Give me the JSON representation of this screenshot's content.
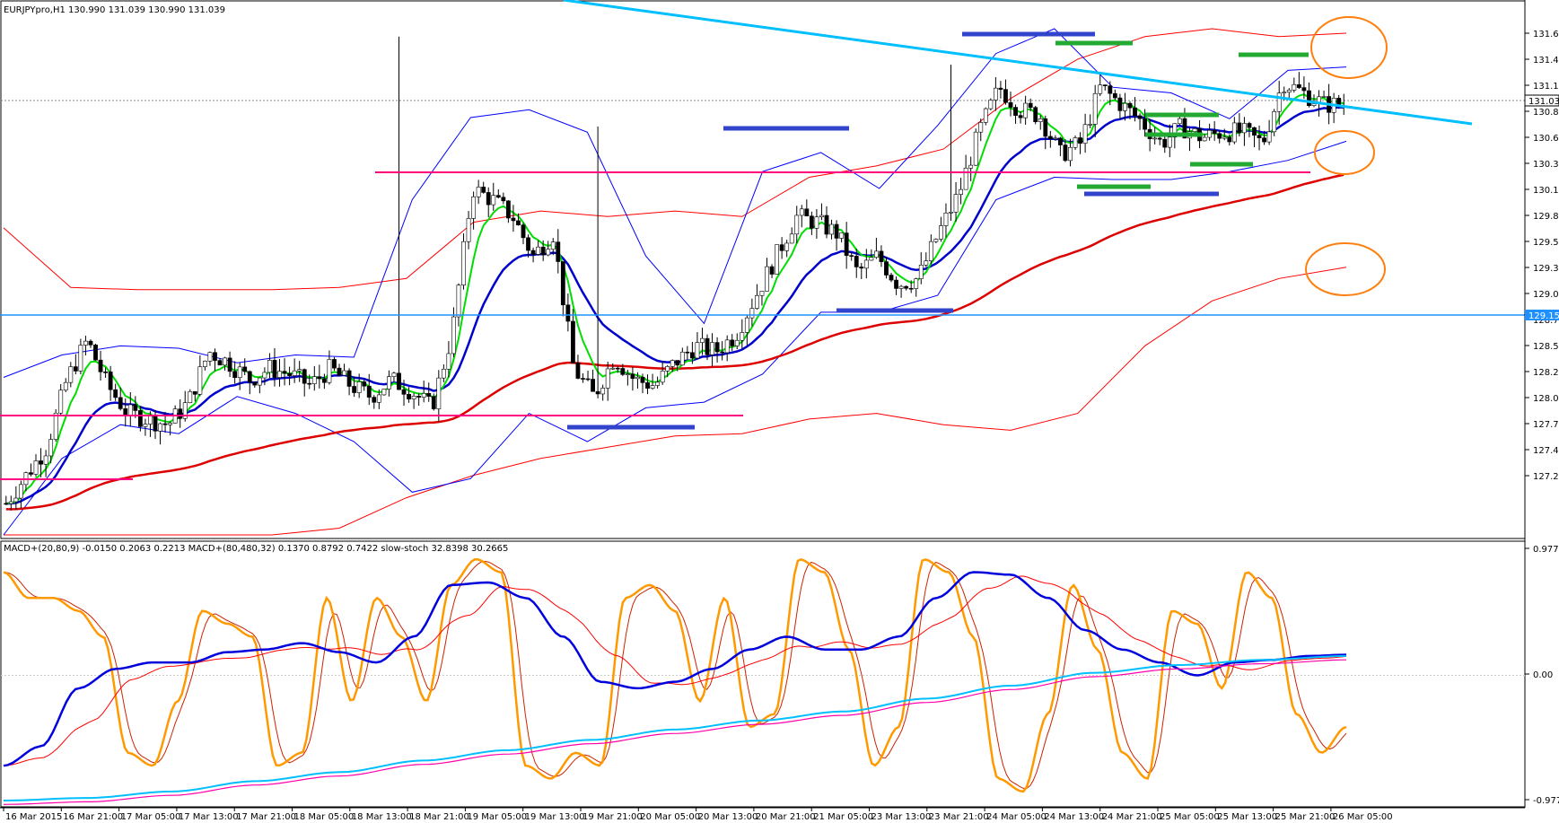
{
  "window": {
    "title_text": "EURJPYpro,H1  130.990 131.039 130.990 131.039",
    "indicator_text": "MACD+(20,80,9) -0.0150 0.2063 0.2213  MACD+(80,480,32) 0.1370 0.8792 0.7422  slow-stoch 32.8398 30.2665"
  },
  "colors": {
    "background": "#ffffff",
    "bull_candle": "#ffffff",
    "bear_candle": "#000000",
    "ema_fast": "#00dd00",
    "ema_mid": "#0000cc",
    "ema_slow": "#dd0000",
    "bollinger_blue": "#0000ff",
    "bollinger_red": "#ff0000",
    "trendline": "#00bfff",
    "support_magenta": "#ff0080",
    "level_blue": "#3344cc",
    "level_green": "#22aa33",
    "ellipse": "#ff7f0e",
    "hline": "#1e90ff",
    "macd_fast": "#0000dd",
    "macd_fast_signal": "#ff0000",
    "macd_slow": "#00bfff",
    "macd_slow_signal": "#ff00aa",
    "stoch_main": "#ff9900",
    "stoch_signal": "#cc2200"
  },
  "price_scale": {
    "ticks": [
      "131.670",
      "131.410",
      "131.145",
      "130.885",
      "130.625",
      "130.360",
      "130.100",
      "129.835",
      "129.575",
      "129.315",
      "129.050",
      "128.790",
      "128.530",
      "128.265",
      "128.005",
      "127.740",
      "127.480",
      "127.220"
    ],
    "current_price_label": "131.039",
    "hline_label": "129.156"
  },
  "indicator_scale": {
    "ticks": [
      "0.9771",
      "0.00",
      "-0.9771"
    ]
  },
  "time_axis": {
    "labels": [
      "16 Mar 2015",
      "16 Mar 21:00",
      "17 Mar 05:00",
      "17 Mar 13:00",
      "17 Mar 21:00",
      "18 Mar 05:00",
      "18 Mar 13:00",
      "18 Mar 21:00",
      "19 Mar 05:00",
      "19 Mar 13:00",
      "19 Mar 21:00",
      "20 Mar 05:00",
      "20 Mar 13:00",
      "20 Mar 21:00",
      "21 Mar 05:00",
      "23 Mar 13:00",
      "23 Mar 21:00",
      "24 Mar 05:00",
      "24 Mar 13:00",
      "24 Mar 21:00",
      "25 Mar 05:00",
      "25 Mar 13:00",
      "25 Mar 21:00",
      "26 Mar 05:00"
    ]
  },
  "chart_data": {
    "type": "candlestick",
    "symbol": "EURJPYpro",
    "timeframe": "H1",
    "ohlc_last": {
      "open": 130.99,
      "high": 131.039,
      "low": 130.99,
      "close": 131.039
    },
    "y_range": [
      127.22,
      131.8
    ],
    "close_path": [
      127.5,
      127.75,
      128.0,
      128.6,
      128.95,
      128.55,
      128.3,
      128.25,
      128.2,
      128.4,
      128.85,
      128.75,
      128.6,
      128.7,
      128.65,
      128.55,
      128.7,
      128.55,
      128.45,
      128.6,
      128.5,
      128.35,
      129.0,
      130.3,
      130.2,
      130.05,
      129.7,
      129.9,
      128.7,
      128.45,
      128.8,
      128.6,
      128.55,
      128.75,
      128.9,
      128.85,
      129.0,
      129.35,
      129.7,
      130.05,
      130.0,
      129.9,
      129.55,
      129.7,
      129.45,
      129.5,
      129.9,
      130.25,
      130.8,
      131.2,
      131.0,
      130.95,
      130.6,
      130.7,
      131.2,
      131.05,
      130.9,
      130.7,
      130.85,
      130.75,
      130.8,
      130.8,
      130.7,
      131.25,
      131.15,
      131.05,
      131.04
    ],
    "bollinger_volatile": [
      {
        "name": "upper",
        "values": [
          128.62,
          128.82,
          128.9,
          128.88,
          128.75,
          128.82,
          128.8,
          130.2,
          130.93,
          131.0,
          130.8,
          129.7,
          129.1,
          130.45,
          130.62,
          130.3,
          130.86,
          131.5,
          131.72,
          131.2,
          131.15,
          130.92,
          131.35,
          131.38
        ]
      },
      {
        "name": "lower",
        "values": [
          127.22,
          127.9,
          128.2,
          128.12,
          128.45,
          128.3,
          128.05,
          127.6,
          127.72,
          128.3,
          128.05,
          128.35,
          128.4,
          128.65,
          129.2,
          129.2,
          129.35,
          130.2,
          130.4,
          130.38,
          130.38,
          130.45,
          130.55,
          130.72
        ]
      }
    ],
    "bollinger_wide": [
      {
        "name": "upper",
        "values": [
          129.95,
          129.42,
          129.4,
          129.4,
          129.4,
          129.42,
          129.5,
          130.0,
          130.1,
          130.05,
          130.1,
          130.05,
          130.4,
          130.5,
          130.65,
          131.1,
          131.45,
          131.65,
          131.72,
          131.65,
          131.68
        ]
      },
      {
        "name": "lower",
        "values": [
          127.22,
          127.22,
          127.22,
          127.22,
          127.22,
          127.28,
          127.55,
          127.75,
          127.9,
          128.0,
          128.1,
          128.12,
          128.25,
          128.3,
          128.2,
          128.15,
          128.3,
          128.9,
          129.3,
          129.5,
          129.6
        ]
      }
    ],
    "trendline": {
      "from": 131.78,
      "to": 130.86
    },
    "horizontal_line": 129.156,
    "current_price": 131.039,
    "indicator_range": [
      -0.9771,
      0.9771
    ],
    "stoch_trace": [
      0.8,
      0.6,
      0.6,
      0.5,
      0.3,
      -0.6,
      -0.7,
      -0.2,
      0.5,
      0.4,
      0.3,
      -0.7,
      -0.6,
      0.6,
      -0.2,
      0.6,
      0.3,
      -0.2,
      0.7,
      0.9,
      0.8,
      -0.7,
      -0.8,
      -0.6,
      -0.7,
      0.6,
      0.7,
      0.5,
      -0.2,
      0.6,
      -0.4,
      -0.3,
      0.9,
      0.8,
      0.2,
      -0.7,
      -0.4,
      0.9,
      0.8,
      0.3,
      -0.8,
      -0.9,
      -0.3,
      0.7,
      0.2,
      -0.6,
      -0.8,
      0.5,
      0.4,
      -0.1,
      0.8,
      0.6,
      -0.3,
      -0.6,
      -0.4
    ]
  }
}
